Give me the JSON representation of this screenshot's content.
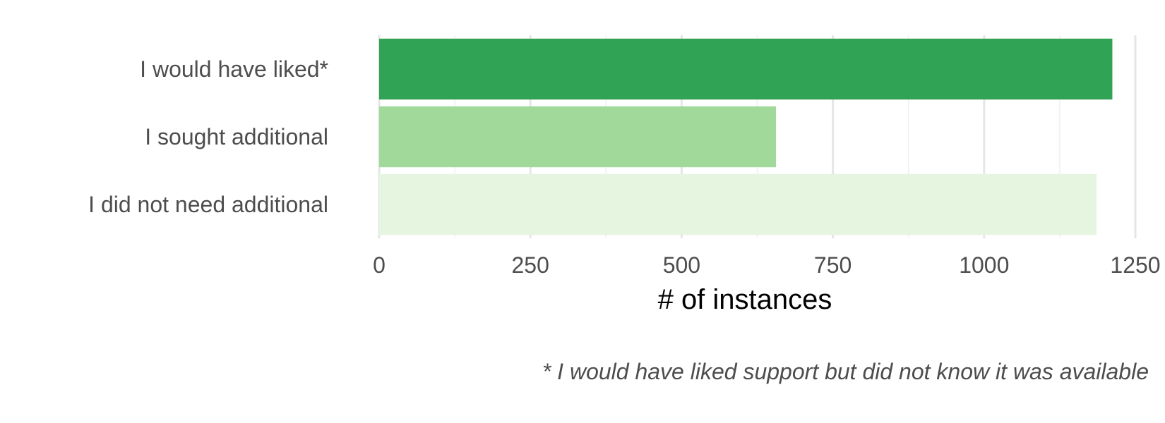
{
  "chart_data": {
    "type": "bar",
    "orientation": "horizontal",
    "categories": [
      "I would have liked*",
      "I sought additional",
      "I did not need additional"
    ],
    "values": [
      1212,
      656,
      1186
    ],
    "colors": [
      "#31a354",
      "#a1d99b",
      "#e5f5e0"
    ],
    "xlabel": "# of instances",
    "xlim": [
      0,
      1250
    ],
    "xticks": [
      0,
      250,
      500,
      750,
      1000,
      1250
    ],
    "grid": true,
    "footnote": "* I would have liked support but did not know it was available"
  }
}
